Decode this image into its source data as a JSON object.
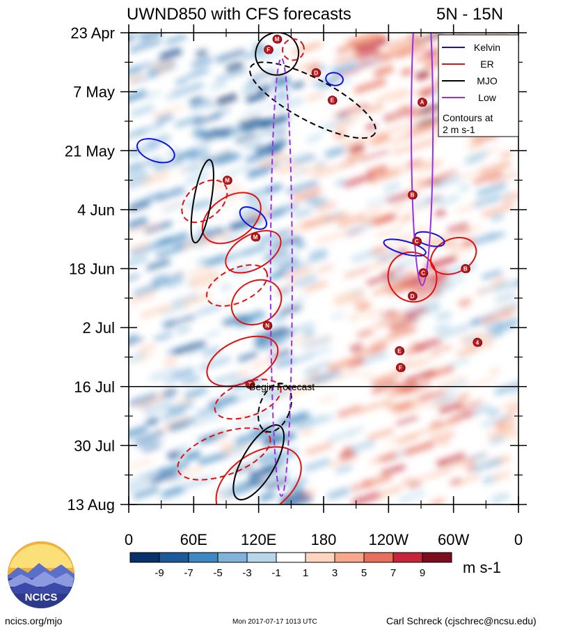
{
  "header": {
    "title": "UWND850 with CFS forecasts",
    "region": "5N - 15N"
  },
  "chart_data": {
    "type": "heatmap",
    "title": "UWND850 with CFS forecasts",
    "subtitle": "5N - 15N",
    "x_ticks": [
      {
        "label": "0",
        "lon": 0
      },
      {
        "label": "60E",
        "lon": 60
      },
      {
        "label": "120E",
        "lon": 120
      },
      {
        "label": "180",
        "lon": 180
      },
      {
        "label": "120W",
        "lon": 240
      },
      {
        "label": "60W",
        "lon": 300
      },
      {
        "label": "0",
        "lon": 360
      }
    ],
    "y_ticks": [
      {
        "label": "23 Apr",
        "day": 0
      },
      {
        "label": "7 May",
        "day": 14
      },
      {
        "label": "21 May",
        "day": 28
      },
      {
        "label": "4 Jun",
        "day": 42
      },
      {
        "label": "18 Jun",
        "day": 56
      },
      {
        "label": "2 Jul",
        "day": 70
      },
      {
        "label": "16 Jul",
        "day": 84
      },
      {
        "label": "30 Jul",
        "day": 98
      },
      {
        "label": "13 Aug",
        "day": 112
      }
    ],
    "xlim": [
      0,
      360
    ],
    "ylim_days": [
      0,
      112
    ],
    "forecast_start_day": 84,
    "forecast_label": "Begin Forecast",
    "legend": {
      "placement": "top-right",
      "entries": [
        {
          "name": "Kelvin",
          "color": "#1010e0"
        },
        {
          "name": "ER",
          "color": "#e01010"
        },
        {
          "name": "MJO",
          "color": "#000000"
        },
        {
          "name": "Low",
          "color": "#9a30e0"
        }
      ],
      "note_line1": "Contours at",
      "note_line2": "2 m s-1"
    },
    "colorbar": {
      "levels": [
        "-9",
        "-7",
        "-5",
        "-3",
        "-1",
        "1",
        "3",
        "5",
        "7",
        "9"
      ],
      "colors": [
        "#08306b",
        "#1c5a9a",
        "#3f87c0",
        "#7fb3d8",
        "#b8d6ea",
        "#ffffff",
        "#fdd6c2",
        "#f5a88b",
        "#e6705a",
        "#c6263a",
        "#7a0e1e"
      ],
      "units": "m s-1"
    },
    "storm_labels": [
      {
        "letter": "M",
        "lon": 137,
        "day": 1.5
      },
      {
        "letter": "F",
        "lon": 129,
        "day": 4
      },
      {
        "letter": "D",
        "lon": 173,
        "day": 9.5
      },
      {
        "letter": "E",
        "lon": 188,
        "day": 16
      },
      {
        "letter": "A",
        "lon": 271,
        "day": 16.5
      },
      {
        "letter": "M",
        "lon": 91,
        "day": 35
      },
      {
        "letter": "B",
        "lon": 262,
        "day": 38.5
      },
      {
        "letter": "M",
        "lon": 117,
        "day": 48.5
      },
      {
        "letter": "C",
        "lon": 266,
        "day": 49.5
      },
      {
        "letter": "B",
        "lon": 311,
        "day": 56
      },
      {
        "letter": "C",
        "lon": 272,
        "day": 57
      },
      {
        "letter": "D",
        "lon": 262,
        "day": 62.5
      },
      {
        "letter": "N",
        "lon": 128,
        "day": 69.5
      },
      {
        "letter": "4",
        "lon": 322,
        "day": 73.5
      },
      {
        "letter": "E",
        "lon": 250,
        "day": 75.5
      },
      {
        "letter": "F",
        "lon": 251,
        "day": 79.5
      },
      {
        "letter": "T",
        "lon": 112,
        "day": 83.5
      }
    ]
  },
  "logo": {
    "text": "NCICS"
  },
  "footer": {
    "url": "ncics.org/mjo",
    "timestamp": "Mon 2017-07-17 1013 UTC",
    "author": "Carl Schreck (cjschrec@ncsu.edu)"
  }
}
